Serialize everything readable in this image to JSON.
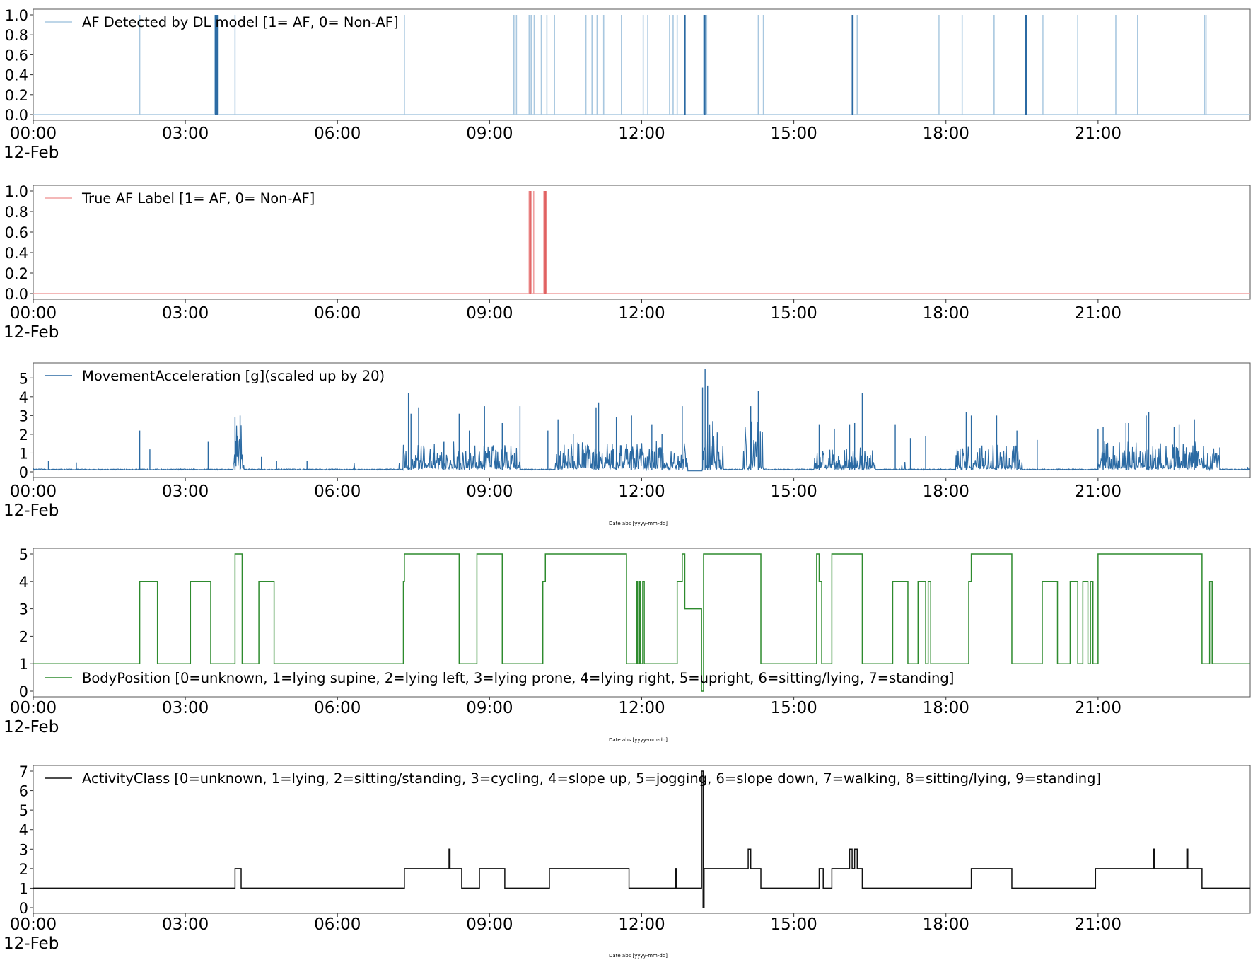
{
  "chart_data": [
    {
      "id": "af_dl",
      "type": "line",
      "legend": "AF Detected by DL model [1= AF, 0= Non-AF]",
      "legend_position": "top-left",
      "color": "#a9c8e0",
      "highlight_color": "#2b6aa3",
      "ylim": [
        0,
        1
      ],
      "yticks": [
        "0.0",
        "0.2",
        "0.4",
        "0.6",
        "0.8",
        "1.0"
      ],
      "ytick_values": [
        0,
        0.2,
        0.4,
        0.6,
        0.8,
        1.0
      ],
      "xticks": [
        "00:00",
        "03:00",
        "06:00",
        "09:00",
        "12:00",
        "15:00",
        "18:00",
        "21:00"
      ],
      "xdate": "12-Feb",
      "xlabel": "",
      "baseline": 0,
      "events": [
        2.1,
        3.58,
        3.62,
        3.65,
        3.98,
        7.32,
        9.48,
        9.53,
        9.78,
        9.82,
        9.88,
        10.02,
        10.13,
        10.28,
        10.9,
        11.02,
        11.12,
        11.25,
        11.6,
        12.03,
        12.12,
        12.55,
        12.62,
        12.7,
        12.85,
        13.22,
        13.26,
        13.28,
        14.3,
        14.4,
        16.15,
        16.17,
        16.25,
        17.85,
        17.88,
        18.32,
        18.95,
        19.58,
        19.9,
        19.93,
        20.6,
        21.35,
        21.78,
        23.1,
        23.13
      ],
      "highlight_events": [
        3.6,
        3.63,
        12.85,
        13.24,
        16.16,
        19.58
      ]
    },
    {
      "id": "true_af",
      "type": "line",
      "legend": "True AF Label [1= AF, 0= Non-AF]",
      "legend_position": "top-left",
      "color": "#f0a0a0",
      "highlight_color": "#e06060",
      "ylim": [
        0,
        1
      ],
      "yticks": [
        "0.0",
        "0.2",
        "0.4",
        "0.6",
        "0.8",
        "1.0"
      ],
      "ytick_values": [
        0,
        0.2,
        0.4,
        0.6,
        0.8,
        1.0
      ],
      "xticks": [
        "00:00",
        "03:00",
        "06:00",
        "09:00",
        "12:00",
        "15:00",
        "18:00",
        "21:00"
      ],
      "xdate": "12-Feb",
      "xlabel": "",
      "baseline": 0,
      "events": [
        9.78,
        9.83,
        9.87,
        10.07,
        10.12
      ],
      "highlight_events": [
        9.8,
        10.1
      ]
    },
    {
      "id": "movement",
      "type": "line",
      "legend": "MovementAcceleration [g](scaled up by 20)",
      "legend_position": "top-left",
      "color": "#2b6aa3",
      "ylim": [
        0,
        5.5
      ],
      "yticks": [
        "0",
        "1",
        "2",
        "3",
        "4",
        "5"
      ],
      "ytick_values": [
        0,
        1,
        2,
        3,
        4,
        5
      ],
      "xticks": [
        "00:00",
        "03:00",
        "06:00",
        "09:00",
        "12:00",
        "15:00",
        "18:00",
        "21:00"
      ],
      "xdate": "12-Feb",
      "xlabel": "Date abs [yyyy-mm-dd]",
      "baseline_level": 0.1,
      "active_periods": [
        [
          3.95,
          4.15,
          1.5
        ],
        [
          7.3,
          9.6,
          0.9
        ],
        [
          10.3,
          12.9,
          0.9
        ],
        [
          13.2,
          13.6,
          1.5
        ],
        [
          14.0,
          14.4,
          1.6
        ],
        [
          15.4,
          16.6,
          0.7
        ],
        [
          18.2,
          19.5,
          0.8
        ],
        [
          21.0,
          23.4,
          0.9
        ]
      ],
      "spikes": [
        [
          0.3,
          0.6
        ],
        [
          0.85,
          0.5
        ],
        [
          2.1,
          2.2
        ],
        [
          2.3,
          1.2
        ],
        [
          3.45,
          1.6
        ],
        [
          3.98,
          2.9
        ],
        [
          4.08,
          3.0
        ],
        [
          4.5,
          0.8
        ],
        [
          4.8,
          0.6
        ],
        [
          5.4,
          0.6
        ],
        [
          7.4,
          4.2
        ],
        [
          7.45,
          3.1
        ],
        [
          7.6,
          3.4
        ],
        [
          8.1,
          1.6
        ],
        [
          8.4,
          3.1
        ],
        [
          8.6,
          2.2
        ],
        [
          8.9,
          3.5
        ],
        [
          9.25,
          2.6
        ],
        [
          9.6,
          3.5
        ],
        [
          10.15,
          2.2
        ],
        [
          10.35,
          2.8
        ],
        [
          10.65,
          2.0
        ],
        [
          11.1,
          3.4
        ],
        [
          11.15,
          3.7
        ],
        [
          11.5,
          2.9
        ],
        [
          11.8,
          3.0
        ],
        [
          12.2,
          2.5
        ],
        [
          12.4,
          2.0
        ],
        [
          12.8,
          3.5
        ],
        [
          13.2,
          4.5
        ],
        [
          13.25,
          5.5
        ],
        [
          13.3,
          4.6
        ],
        [
          14.15,
          3.5
        ],
        [
          14.3,
          4.3
        ],
        [
          15.5,
          2.5
        ],
        [
          15.8,
          2.3
        ],
        [
          16.1,
          2.5
        ],
        [
          16.2,
          2.6
        ],
        [
          16.35,
          4.2
        ],
        [
          17.0,
          2.5
        ],
        [
          17.3,
          1.8
        ],
        [
          17.6,
          1.9
        ],
        [
          18.4,
          3.2
        ],
        [
          18.5,
          3.0
        ],
        [
          19.0,
          3.0
        ],
        [
          19.4,
          2.2
        ],
        [
          19.8,
          1.7
        ],
        [
          21.0,
          2.3
        ],
        [
          21.1,
          2.4
        ],
        [
          21.55,
          2.6
        ],
        [
          21.6,
          2.6
        ],
        [
          21.95,
          3.0
        ],
        [
          22.0,
          3.2
        ],
        [
          22.5,
          2.4
        ],
        [
          22.6,
          2.5
        ],
        [
          22.9,
          2.8
        ],
        [
          23.4,
          1.3
        ]
      ],
      "dip": [
        12.85,
        13.2,
        0.05
      ]
    },
    {
      "id": "body_position",
      "type": "line",
      "legend": "BodyPosition [0=unknown, 1=lying supine, 2=lying left, 3=lying prone, 4=lying right, 5=upright, 6=sitting/lying, 7=standing]",
      "legend_position": "bottom-left",
      "color": "#2e8b2e",
      "ylim": [
        0,
        5
      ],
      "yticks": [
        "0",
        "1",
        "2",
        "3",
        "4",
        "5"
      ],
      "ytick_values": [
        0,
        1,
        2,
        3,
        4,
        5
      ],
      "xticks": [
        "00:00",
        "03:00",
        "06:00",
        "09:00",
        "12:00",
        "15:00",
        "18:00",
        "21:00"
      ],
      "xdate": "12-Feb",
      "xlabel": "Date abs [yyyy-mm-dd]",
      "steps": [
        [
          0,
          1
        ],
        [
          2.1,
          4
        ],
        [
          2.45,
          1
        ],
        [
          3.1,
          4
        ],
        [
          3.5,
          1
        ],
        [
          3.98,
          5
        ],
        [
          4.05,
          5
        ],
        [
          4.12,
          1
        ],
        [
          4.45,
          4
        ],
        [
          4.75,
          1
        ],
        [
          7.3,
          4
        ],
        [
          7.32,
          5
        ],
        [
          8.4,
          1
        ],
        [
          8.75,
          5
        ],
        [
          9.25,
          1
        ],
        [
          10.05,
          4
        ],
        [
          10.1,
          5
        ],
        [
          11.7,
          1
        ],
        [
          11.9,
          4
        ],
        [
          11.92,
          1
        ],
        [
          11.95,
          4
        ],
        [
          11.97,
          1
        ],
        [
          12.02,
          4
        ],
        [
          12.05,
          1
        ],
        [
          12.7,
          4
        ],
        [
          12.8,
          5
        ],
        [
          12.85,
          3
        ],
        [
          13.18,
          0
        ],
        [
          13.22,
          5
        ],
        [
          14.35,
          1
        ],
        [
          15.45,
          5
        ],
        [
          15.5,
          4
        ],
        [
          15.55,
          1
        ],
        [
          15.75,
          5
        ],
        [
          16.35,
          1
        ],
        [
          16.95,
          4
        ],
        [
          17.25,
          1
        ],
        [
          17.45,
          4
        ],
        [
          17.6,
          1
        ],
        [
          17.65,
          4
        ],
        [
          17.7,
          1
        ],
        [
          18.45,
          4
        ],
        [
          18.5,
          5
        ],
        [
          19.3,
          1
        ],
        [
          19.9,
          4
        ],
        [
          20.2,
          1
        ],
        [
          20.45,
          4
        ],
        [
          20.6,
          1
        ],
        [
          20.7,
          4
        ],
        [
          20.8,
          1
        ],
        [
          20.85,
          4
        ],
        [
          20.9,
          1
        ],
        [
          21.0,
          5
        ],
        [
          23.05,
          1
        ],
        [
          23.2,
          4
        ],
        [
          23.25,
          1
        ],
        [
          24.0,
          1
        ]
      ]
    },
    {
      "id": "activity_class",
      "type": "line",
      "legend": "ActivityClass [0=unknown, 1=lying, 2=sitting/standing, 3=cycling, 4=slope up, 5=jogging, 6=slope down, 7=walking, 8=sitting/lying, 9=standing]",
      "legend_position": "top-left",
      "color": "#111111",
      "ylim": [
        0,
        7
      ],
      "yticks": [
        "0",
        "1",
        "2",
        "3",
        "4",
        "5",
        "6",
        "7"
      ],
      "ytick_values": [
        0,
        1,
        2,
        3,
        4,
        5,
        6,
        7
      ],
      "xticks": [
        "00:00",
        "03:00",
        "06:00",
        "09:00",
        "12:00",
        "15:00",
        "18:00",
        "21:00"
      ],
      "xdate": "12-Feb",
      "xlabel": "Date abs [yyyy-mm-dd]",
      "steps": [
        [
          0,
          1
        ],
        [
          3.98,
          2
        ],
        [
          4.1,
          1
        ],
        [
          7.32,
          2
        ],
        [
          8.2,
          3
        ],
        [
          8.22,
          2
        ],
        [
          8.45,
          1
        ],
        [
          8.8,
          2
        ],
        [
          9.3,
          1
        ],
        [
          10.18,
          2
        ],
        [
          11.75,
          1
        ],
        [
          12.66,
          2
        ],
        [
          12.68,
          1
        ],
        [
          13.18,
          7
        ],
        [
          13.21,
          0
        ],
        [
          13.23,
          2
        ],
        [
          14.1,
          3
        ],
        [
          14.15,
          2
        ],
        [
          14.35,
          1
        ],
        [
          15.5,
          2
        ],
        [
          15.58,
          1
        ],
        [
          15.75,
          2
        ],
        [
          16.1,
          3
        ],
        [
          16.15,
          2
        ],
        [
          16.2,
          3
        ],
        [
          16.25,
          2
        ],
        [
          16.35,
          1
        ],
        [
          18.5,
          2
        ],
        [
          19.3,
          1
        ],
        [
          20.95,
          2
        ],
        [
          22.1,
          3
        ],
        [
          22.12,
          2
        ],
        [
          22.75,
          3
        ],
        [
          22.77,
          2
        ],
        [
          23.05,
          1
        ],
        [
          24.0,
          1
        ]
      ]
    }
  ]
}
